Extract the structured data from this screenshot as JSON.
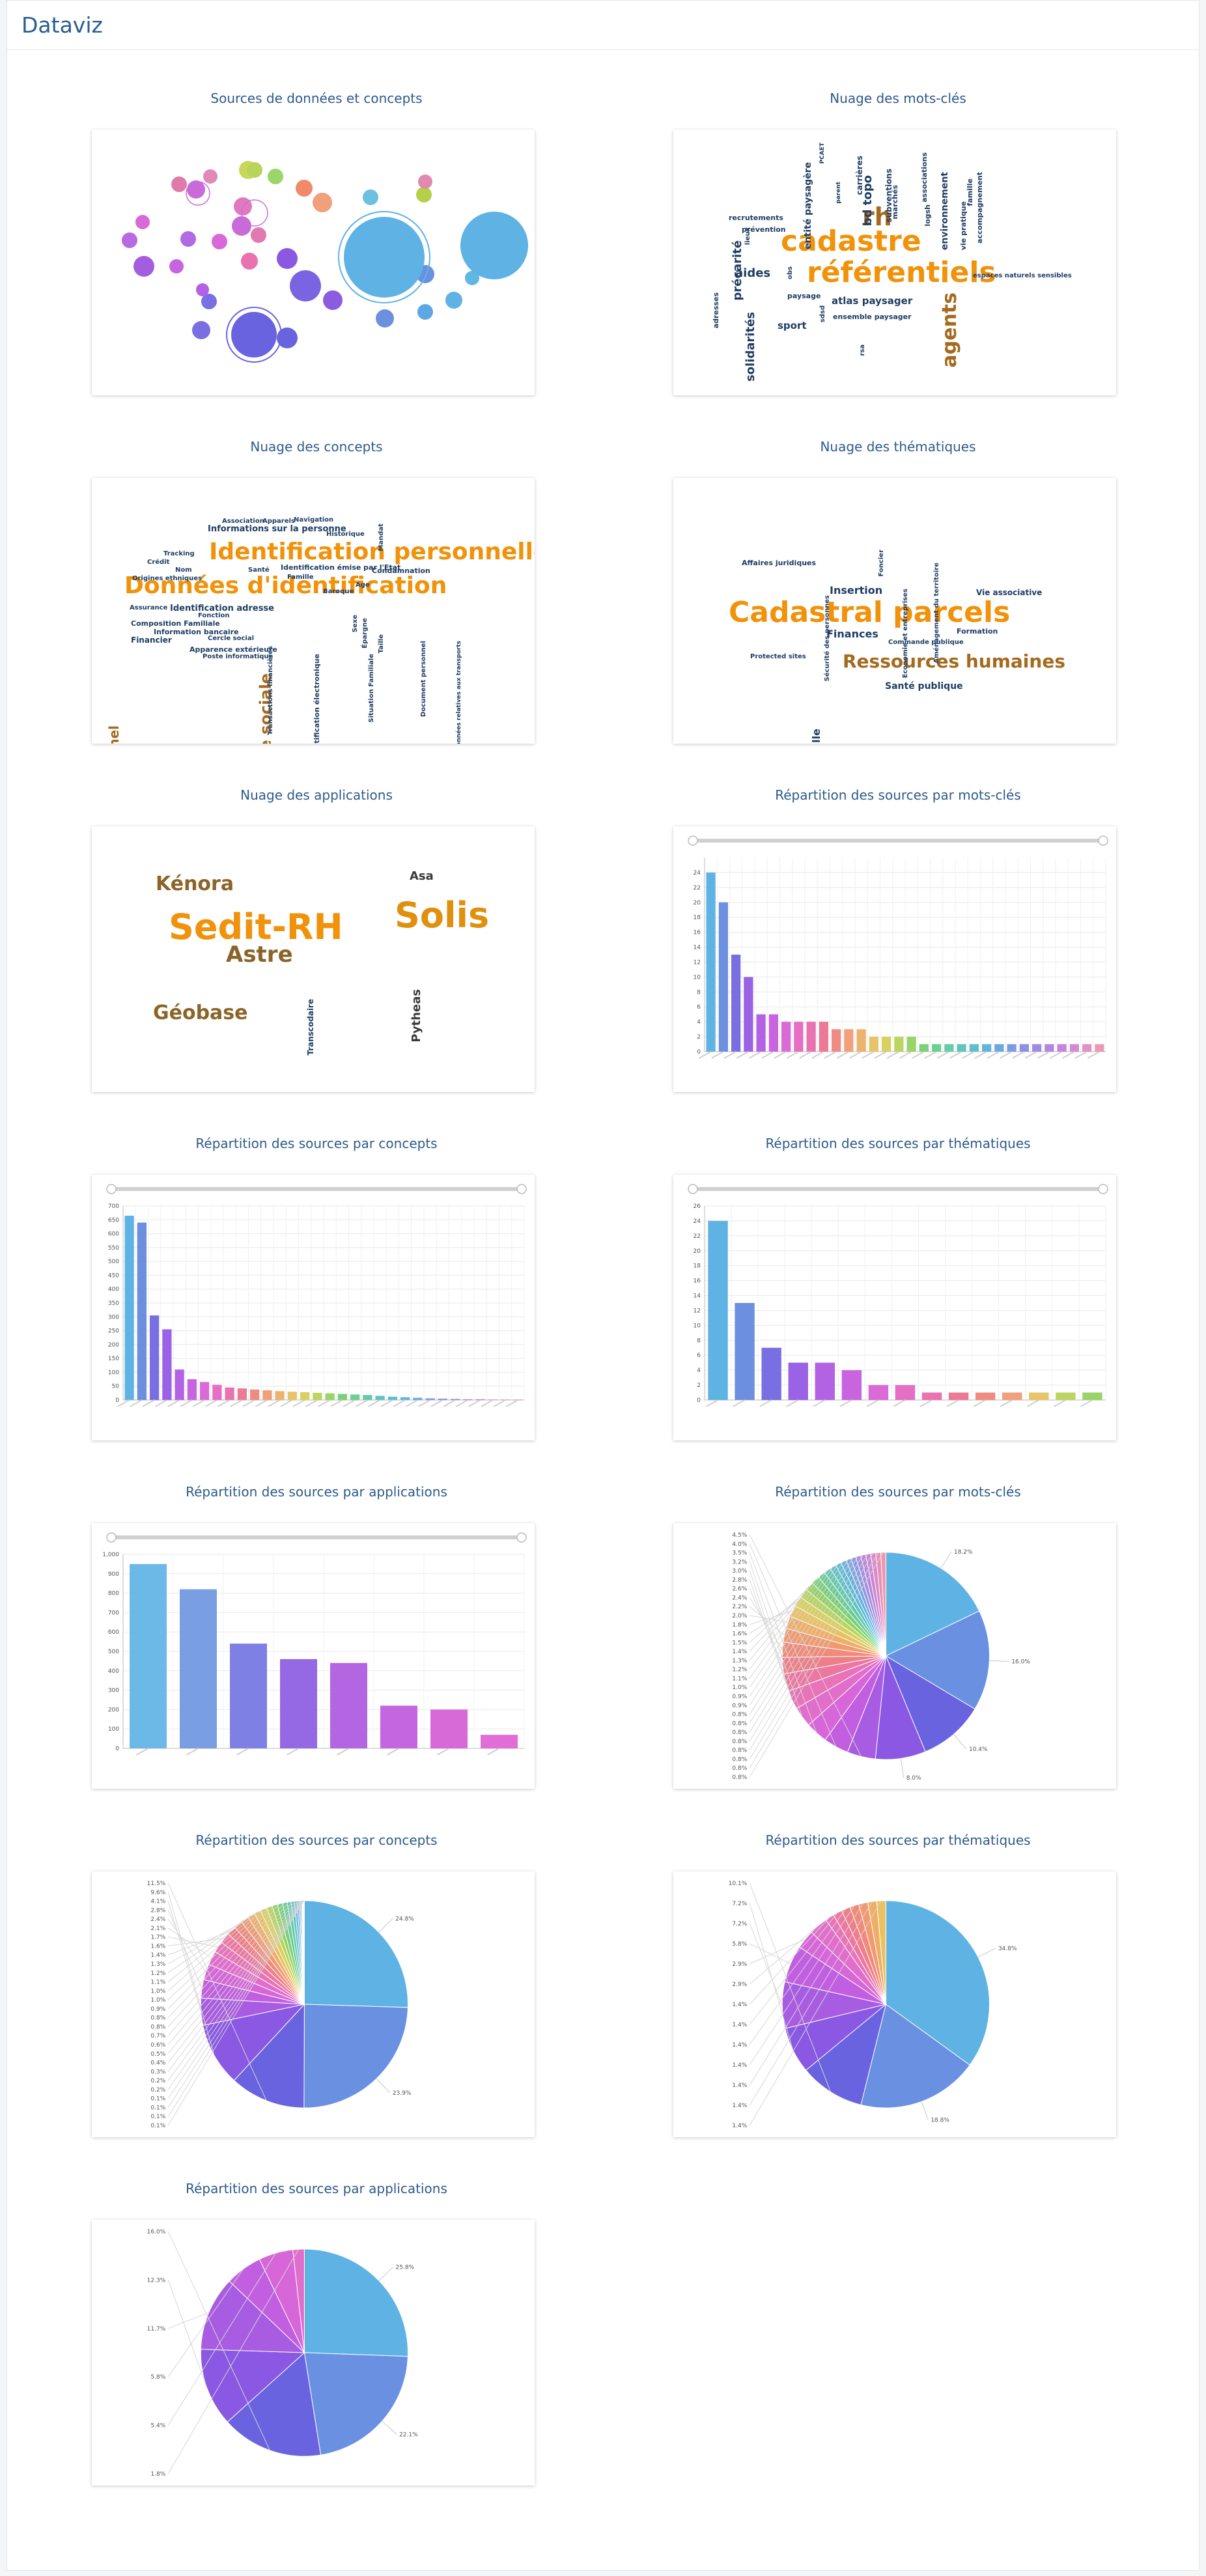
{
  "page": {
    "title": "Dataviz"
  },
  "panels": {
    "sources_concepts": {
      "title": "Sources de données et concepts"
    },
    "kw_cloud": {
      "title": "Nuage des mots-clés",
      "words": [
        {
          "t": "cadastre",
          "c": "#f0920a"
        },
        {
          "t": "référentiels",
          "c": "#f0920a"
        },
        {
          "t": "rh",
          "c": "#a46a1f"
        },
        {
          "t": "agents",
          "c": "#a46a1f"
        },
        {
          "t": "bd topo",
          "c": "#1f3d63"
        },
        {
          "t": "entité paysagère",
          "c": "#1f3d63"
        },
        {
          "t": "subventions",
          "c": "#1f3d63"
        },
        {
          "t": "carrières",
          "c": "#1f3d63"
        },
        {
          "t": "marchés",
          "c": "#1f3d63"
        },
        {
          "t": "associations",
          "c": "#1f3d63"
        },
        {
          "t": "environnement",
          "c": "#1f3d63"
        },
        {
          "t": "accompagnement",
          "c": "#1f3d63"
        },
        {
          "t": "famille",
          "c": "#1f3d63"
        },
        {
          "t": "vie pratique",
          "c": "#1f3d63"
        },
        {
          "t": "logsh",
          "c": "#1f3d63"
        },
        {
          "t": "recrutements",
          "c": "#1f3d63"
        },
        {
          "t": "prévention",
          "c": "#1f3d63"
        },
        {
          "t": "précarité",
          "c": "#1f3d63"
        },
        {
          "t": "aides",
          "c": "#1f3d63"
        },
        {
          "t": "parent",
          "c": "#1f3d63"
        },
        {
          "t": "paysage",
          "c": "#1f3d63"
        },
        {
          "t": "solidarités",
          "c": "#1f3d63"
        },
        {
          "t": "sport",
          "c": "#1f3d63"
        },
        {
          "t": "atlas paysager",
          "c": "#1f3d63"
        },
        {
          "t": "ensemble paysager",
          "c": "#1f3d63"
        },
        {
          "t": "espaces naturels sensibles",
          "c": "#1f3d63"
        },
        {
          "t": "adresses",
          "c": "#1f3d63"
        },
        {
          "t": "lieux",
          "c": "#1f3d63"
        },
        {
          "t": "obs",
          "c": "#1f3d63"
        },
        {
          "t": "sdsd",
          "c": "#1f3d63"
        },
        {
          "t": "rsa",
          "c": "#1f3d63"
        },
        {
          "t": "PCAET",
          "c": "#1f3d63"
        }
      ]
    },
    "concept_cloud": {
      "title": "Nuage des concepts",
      "words": [
        {
          "t": "Identification personnelle",
          "c": "#f0920a"
        },
        {
          "t": "Données d'identification",
          "c": "#f0920a"
        },
        {
          "t": "Parcours scolaire ou professionnel",
          "c": "#a46a1f"
        },
        {
          "t": "Vie sociale",
          "c": "#a46a1f"
        },
        {
          "t": "Informations sur la personne",
          "c": "#1f3d63"
        },
        {
          "t": "Identification adresse",
          "c": "#1f3d63"
        },
        {
          "t": "Composition Familiale",
          "c": "#1f3d63"
        },
        {
          "t": "Information bancaire",
          "c": "#1f3d63"
        },
        {
          "t": "Financier",
          "c": "#1f3d63"
        },
        {
          "t": "Apparence extérieure",
          "c": "#1f3d63"
        },
        {
          "t": "Poste informatique",
          "c": "#1f3d63"
        },
        {
          "t": "Tracking",
          "c": "#1f3d63"
        },
        {
          "t": "Crédit",
          "c": "#1f3d63"
        },
        {
          "t": "Nom",
          "c": "#1f3d63"
        },
        {
          "t": "Origines ethniques",
          "c": "#1f3d63"
        },
        {
          "t": "Assurance",
          "c": "#1f3d63"
        },
        {
          "t": "Fonction",
          "c": "#1f3d63"
        },
        {
          "t": "Cercle social",
          "c": "#1f3d63"
        },
        {
          "t": "Association",
          "c": "#1f3d63"
        },
        {
          "t": "Apparels",
          "c": "#1f3d63"
        },
        {
          "t": "Navigation",
          "c": "#1f3d63"
        },
        {
          "t": "Historique",
          "c": "#1f3d63"
        },
        {
          "t": "Santé",
          "c": "#1f3d63"
        },
        {
          "t": "Famille",
          "c": "#1f3d63"
        },
        {
          "t": "Identification émise par l'Etat",
          "c": "#1f3d63"
        },
        {
          "t": "Condamnation",
          "c": "#1f3d63"
        },
        {
          "t": "Age",
          "c": "#1f3d63"
        },
        {
          "t": "Baroque",
          "c": "#1f3d63"
        },
        {
          "t": "Mandat",
          "c": "#1f3d63"
        },
        {
          "t": "Identification électronique",
          "c": "#1f3d63"
        },
        {
          "t": "Situation Familiale",
          "c": "#1f3d63"
        },
        {
          "t": "Transactions financières",
          "c": "#1f3d63"
        },
        {
          "t": "Document personnel",
          "c": "#1f3d63"
        },
        {
          "t": "Taille",
          "c": "#1f3d63"
        },
        {
          "t": "Sexe",
          "c": "#1f3d63"
        },
        {
          "t": "Épargne",
          "c": "#1f3d63"
        },
        {
          "t": "Données relatives aux transports",
          "c": "#1f3d63"
        }
      ]
    },
    "theme_cloud": {
      "title": "Nuage des thématiques",
      "words": [
        {
          "t": "Cadastral parcels",
          "c": "#f0920a"
        },
        {
          "t": "Ressources humaines",
          "c": "#a46a1f"
        },
        {
          "t": "Enfance et famille",
          "c": "#1f3d63"
        },
        {
          "t": "Insertion",
          "c": "#1f3d63"
        },
        {
          "t": "Finances",
          "c": "#1f3d63"
        },
        {
          "t": "Santé publique",
          "c": "#1f3d63"
        },
        {
          "t": "Affaires juridiques",
          "c": "#1f3d63"
        },
        {
          "t": "Protected sites",
          "c": "#1f3d63"
        },
        {
          "t": "Sécurité des personnes",
          "c": "#1f3d63"
        },
        {
          "t": "Foncier",
          "c": "#1f3d63"
        },
        {
          "t": "Economie et entreprises",
          "c": "#1f3d63"
        },
        {
          "t": "Aménagement du territoire",
          "c": "#1f3d63"
        },
        {
          "t": "Vie associative",
          "c": "#1f3d63"
        },
        {
          "t": "Formation",
          "c": "#1f3d63"
        },
        {
          "t": "Commande publique",
          "c": "#1f3d63"
        }
      ]
    },
    "app_cloud": {
      "title": "Nuage des applications",
      "words": [
        {
          "t": "Sedit-RH",
          "c": "#f0920a"
        },
        {
          "t": "Solis",
          "c": "#e0900f"
        },
        {
          "t": "Kénora",
          "c": "#8a6428"
        },
        {
          "t": "Astre",
          "c": "#8a6428"
        },
        {
          "t": "Géobase",
          "c": "#8a6428"
        },
        {
          "t": "Asa",
          "c": "#3a3a3a"
        },
        {
          "t": "Pytheas",
          "c": "#3a3a3a"
        },
        {
          "t": "Transcodaire",
          "c": "#1f3d63"
        }
      ]
    },
    "bar_kw": {
      "title": "Répartition des sources par mots-clés"
    },
    "bar_concepts": {
      "title": "Répartition des sources par concepts"
    },
    "bar_themes": {
      "title": "Répartition des sources par thématiques"
    },
    "bar_apps": {
      "title": "Répartition des sources par applications"
    },
    "pie_kw": {
      "title": "Répartition des sources par mots-clés"
    },
    "pie_concepts": {
      "title": "Répartition des sources par concepts"
    },
    "pie_themes": {
      "title": "Répartition des sources par thématiques"
    },
    "pie_apps": {
      "title": "Répartition des sources par applications"
    }
  },
  "chart_data": [
    {
      "id": "bar_kw",
      "type": "bar",
      "values": [
        24,
        20,
        13,
        10,
        5,
        5,
        4,
        4,
        4,
        4,
        3,
        3,
        3,
        2,
        2,
        2,
        2,
        1,
        1,
        1,
        1,
        1,
        1,
        1,
        1,
        1,
        1,
        1,
        1,
        1,
        1,
        1
      ],
      "ylim": [
        0,
        26
      ],
      "yticks": [
        0,
        2,
        4,
        6,
        8,
        10,
        12,
        14,
        16,
        18,
        20,
        22,
        24
      ],
      "colors": [
        "#5eb3e4",
        "#6c8fe0",
        "#7a6fe2",
        "#9a62e4",
        "#b462e4",
        "#c964e0",
        "#d96ad8",
        "#e46fc4",
        "#ea72b0",
        "#ec7a96",
        "#ee8c84",
        "#f0a07a",
        "#eeb270",
        "#e8c468",
        "#d8d060",
        "#bcd460",
        "#98d468",
        "#7cd07a",
        "#6cd090",
        "#64cca8",
        "#60c6bc",
        "#5ebed0",
        "#62b4dc",
        "#6ca8e0",
        "#7c9ce2",
        "#8c92e2",
        "#a08ae2",
        "#b486e0",
        "#c884da",
        "#d88ad0",
        "#e490c4",
        "#ec98b4"
      ],
      "grid": true
    },
    {
      "id": "bar_concepts",
      "type": "bar",
      "values": [
        665,
        640,
        305,
        255,
        110,
        75,
        65,
        55,
        45,
        42,
        38,
        35,
        32,
        30,
        28,
        26,
        24,
        22,
        20,
        18,
        15,
        12,
        10,
        8,
        6,
        5,
        4,
        3,
        3,
        2,
        2,
        2
      ],
      "ylim": [
        0,
        700
      ],
      "yticks": [
        0,
        50,
        100,
        150,
        200,
        250,
        300,
        350,
        400,
        450,
        500,
        550,
        600,
        650,
        700
      ],
      "colors": [
        "#5eb3e4",
        "#6c8fe0",
        "#7a6fe2",
        "#9a62e4",
        "#b462e4",
        "#c964e0",
        "#d96ad8",
        "#e46fc4",
        "#ea72b0",
        "#ec7a96",
        "#ee8c84",
        "#f0a07a",
        "#eeb270",
        "#e8c468",
        "#d8d060",
        "#bcd460",
        "#98d468",
        "#7cd07a",
        "#6cd090",
        "#64cca8",
        "#60c6bc",
        "#5ebed0",
        "#62b4dc",
        "#6ca8e0",
        "#7c9ce2",
        "#8c92e2",
        "#a08ae2",
        "#b486e0",
        "#c884da",
        "#d88ad0",
        "#e490c4",
        "#ec98b4"
      ],
      "grid": true
    },
    {
      "id": "bar_themes",
      "type": "bar",
      "values": [
        24,
        13,
        7,
        5,
        5,
        4,
        2,
        2,
        1,
        1,
        1,
        1,
        1,
        1,
        1
      ],
      "ylim": [
        0,
        26
      ],
      "yticks": [
        0,
        2,
        4,
        6,
        8,
        10,
        12,
        14,
        16,
        18,
        20,
        22,
        24,
        26
      ],
      "colors": [
        "#5eb3e4",
        "#6c8fe0",
        "#7a6fe2",
        "#9a62e4",
        "#b462e4",
        "#c964e0",
        "#d96ad8",
        "#e46fc4",
        "#ea72b0",
        "#ec7a96",
        "#ee8c84",
        "#f0a07a",
        "#e8c468",
        "#bcd460",
        "#98d468"
      ],
      "grid": true
    },
    {
      "id": "bar_apps",
      "type": "bar",
      "values": [
        950,
        820,
        540,
        460,
        440,
        220,
        200,
        70
      ],
      "ylim": [
        0,
        1000
      ],
      "yticks": [
        0,
        100,
        200,
        300,
        400,
        500,
        600,
        700,
        800,
        900,
        1000
      ],
      "colors": [
        "#6cb8e6",
        "#7a9ee2",
        "#7f80e4",
        "#9568e4",
        "#b466e2",
        "#c466e0",
        "#d86ad8",
        "#e06ed6"
      ],
      "grid": true
    },
    {
      "id": "pie_kw",
      "type": "pie",
      "values": [
        18.2,
        16.0,
        10.4,
        8.0,
        4.5,
        4.0,
        3.5,
        3.2,
        3.0,
        2.8,
        2.6,
        2.4,
        2.2,
        2.0,
        1.8,
        1.6,
        1.5,
        1.4,
        1.3,
        1.2,
        1.1,
        1.0,
        0.9,
        0.9,
        0.8,
        0.8,
        0.8,
        0.8,
        0.8,
        0.8,
        0.8,
        0.8
      ],
      "labels": [
        "18.2%",
        "16.0%",
        "10.4%",
        "8.0%",
        "4.5%",
        "4.0%",
        "3.5%",
        "3.2%",
        "3.0%",
        "2.8%",
        "2.6%",
        "2.4%",
        "2.2%",
        "2.0%",
        "1.8%",
        "1.6%",
        "1.5%",
        "1.4%",
        "1.3%",
        "1.2%",
        "1.1%",
        "1.0%",
        "0.9%",
        "0.9%",
        "0.8%",
        "0.8%",
        "0.8%",
        "0.8%",
        "0.8%",
        "0.8%",
        "0.8%",
        "0.8%"
      ]
    },
    {
      "id": "pie_concepts",
      "type": "pie",
      "values": [
        24.8,
        23.9,
        11.5,
        9.6,
        4.1,
        2.8,
        2.4,
        2.1,
        1.7,
        1.6,
        1.4,
        1.3,
        1.2,
        1.1,
        1.0,
        1.0,
        0.9,
        0.8,
        0.8,
        0.7,
        0.6,
        0.5,
        0.4,
        0.3,
        0.2,
        0.2,
        0.1,
        0.1,
        0.1,
        0.1
      ],
      "labels": [
        "24.8%",
        "23.9%",
        "11.5%",
        "9.6%",
        "4.1%",
        "2.8%",
        "2.4%",
        "2.1%",
        "1.7%",
        "1.6%",
        "1.4%",
        "1.3%",
        "1.2%",
        "1.1%",
        "1.0%",
        "1.0%",
        "0.9%",
        "0.8%",
        "0.8%",
        "0.7%",
        "0.6%",
        "0.5%",
        "0.4%",
        "0.3%",
        "0.2%",
        "0.2%",
        "0.1%",
        "0.1%",
        "0.1%",
        "0.1%"
      ]
    },
    {
      "id": "pie_themes",
      "type": "pie",
      "values": [
        34.8,
        18.8,
        10.1,
        7.2,
        7.2,
        5.8,
        2.9,
        2.9,
        1.4,
        1.4,
        1.4,
        1.4,
        1.4,
        1.4,
        1.4
      ],
      "labels": [
        "34.8%",
        "18.8%",
        "10.1%",
        "7.2%",
        "7.2%",
        "5.8%",
        "2.9%",
        "2.9%",
        "1.4%",
        "1.4%",
        "1.4%",
        "1.4%",
        "1.4%",
        "1.4%",
        "1.4%"
      ]
    },
    {
      "id": "pie_apps",
      "type": "pie",
      "values": [
        25.8,
        22.1,
        16.0,
        12.3,
        11.7,
        5.8,
        5.4,
        1.8
      ],
      "labels": [
        "25.8%",
        "22.1%",
        "16.0%",
        "12.3%",
        "11.7%",
        "5.8%",
        "5.4%",
        "1.8%"
      ]
    }
  ],
  "theme": {
    "title_color": "#2a5d8f",
    "panel_title_color": "#2d5a8a",
    "pie_colors": [
      "#5eb3e4",
      "#6a90e2",
      "#6a63e0",
      "#8a58e2",
      "#a85ce2",
      "#c15fe0",
      "#d766d8",
      "#e26ecc",
      "#e873b8",
      "#ec78a2",
      "#ee7f8a",
      "#f08a7a",
      "#f09a72",
      "#eeae68",
      "#e8c262",
      "#d8d05e",
      "#b8d45e",
      "#94d262",
      "#78cf7a",
      "#68cc94",
      "#62c8ae",
      "#5ec2c4",
      "#5ebad6",
      "#66b0e0",
      "#7aa4e2",
      "#8e98e2",
      "#a48ee0",
      "#b888dc",
      "#ca86d4",
      "#da8ac8",
      "#e690ba",
      "#ee98aa"
    ]
  }
}
